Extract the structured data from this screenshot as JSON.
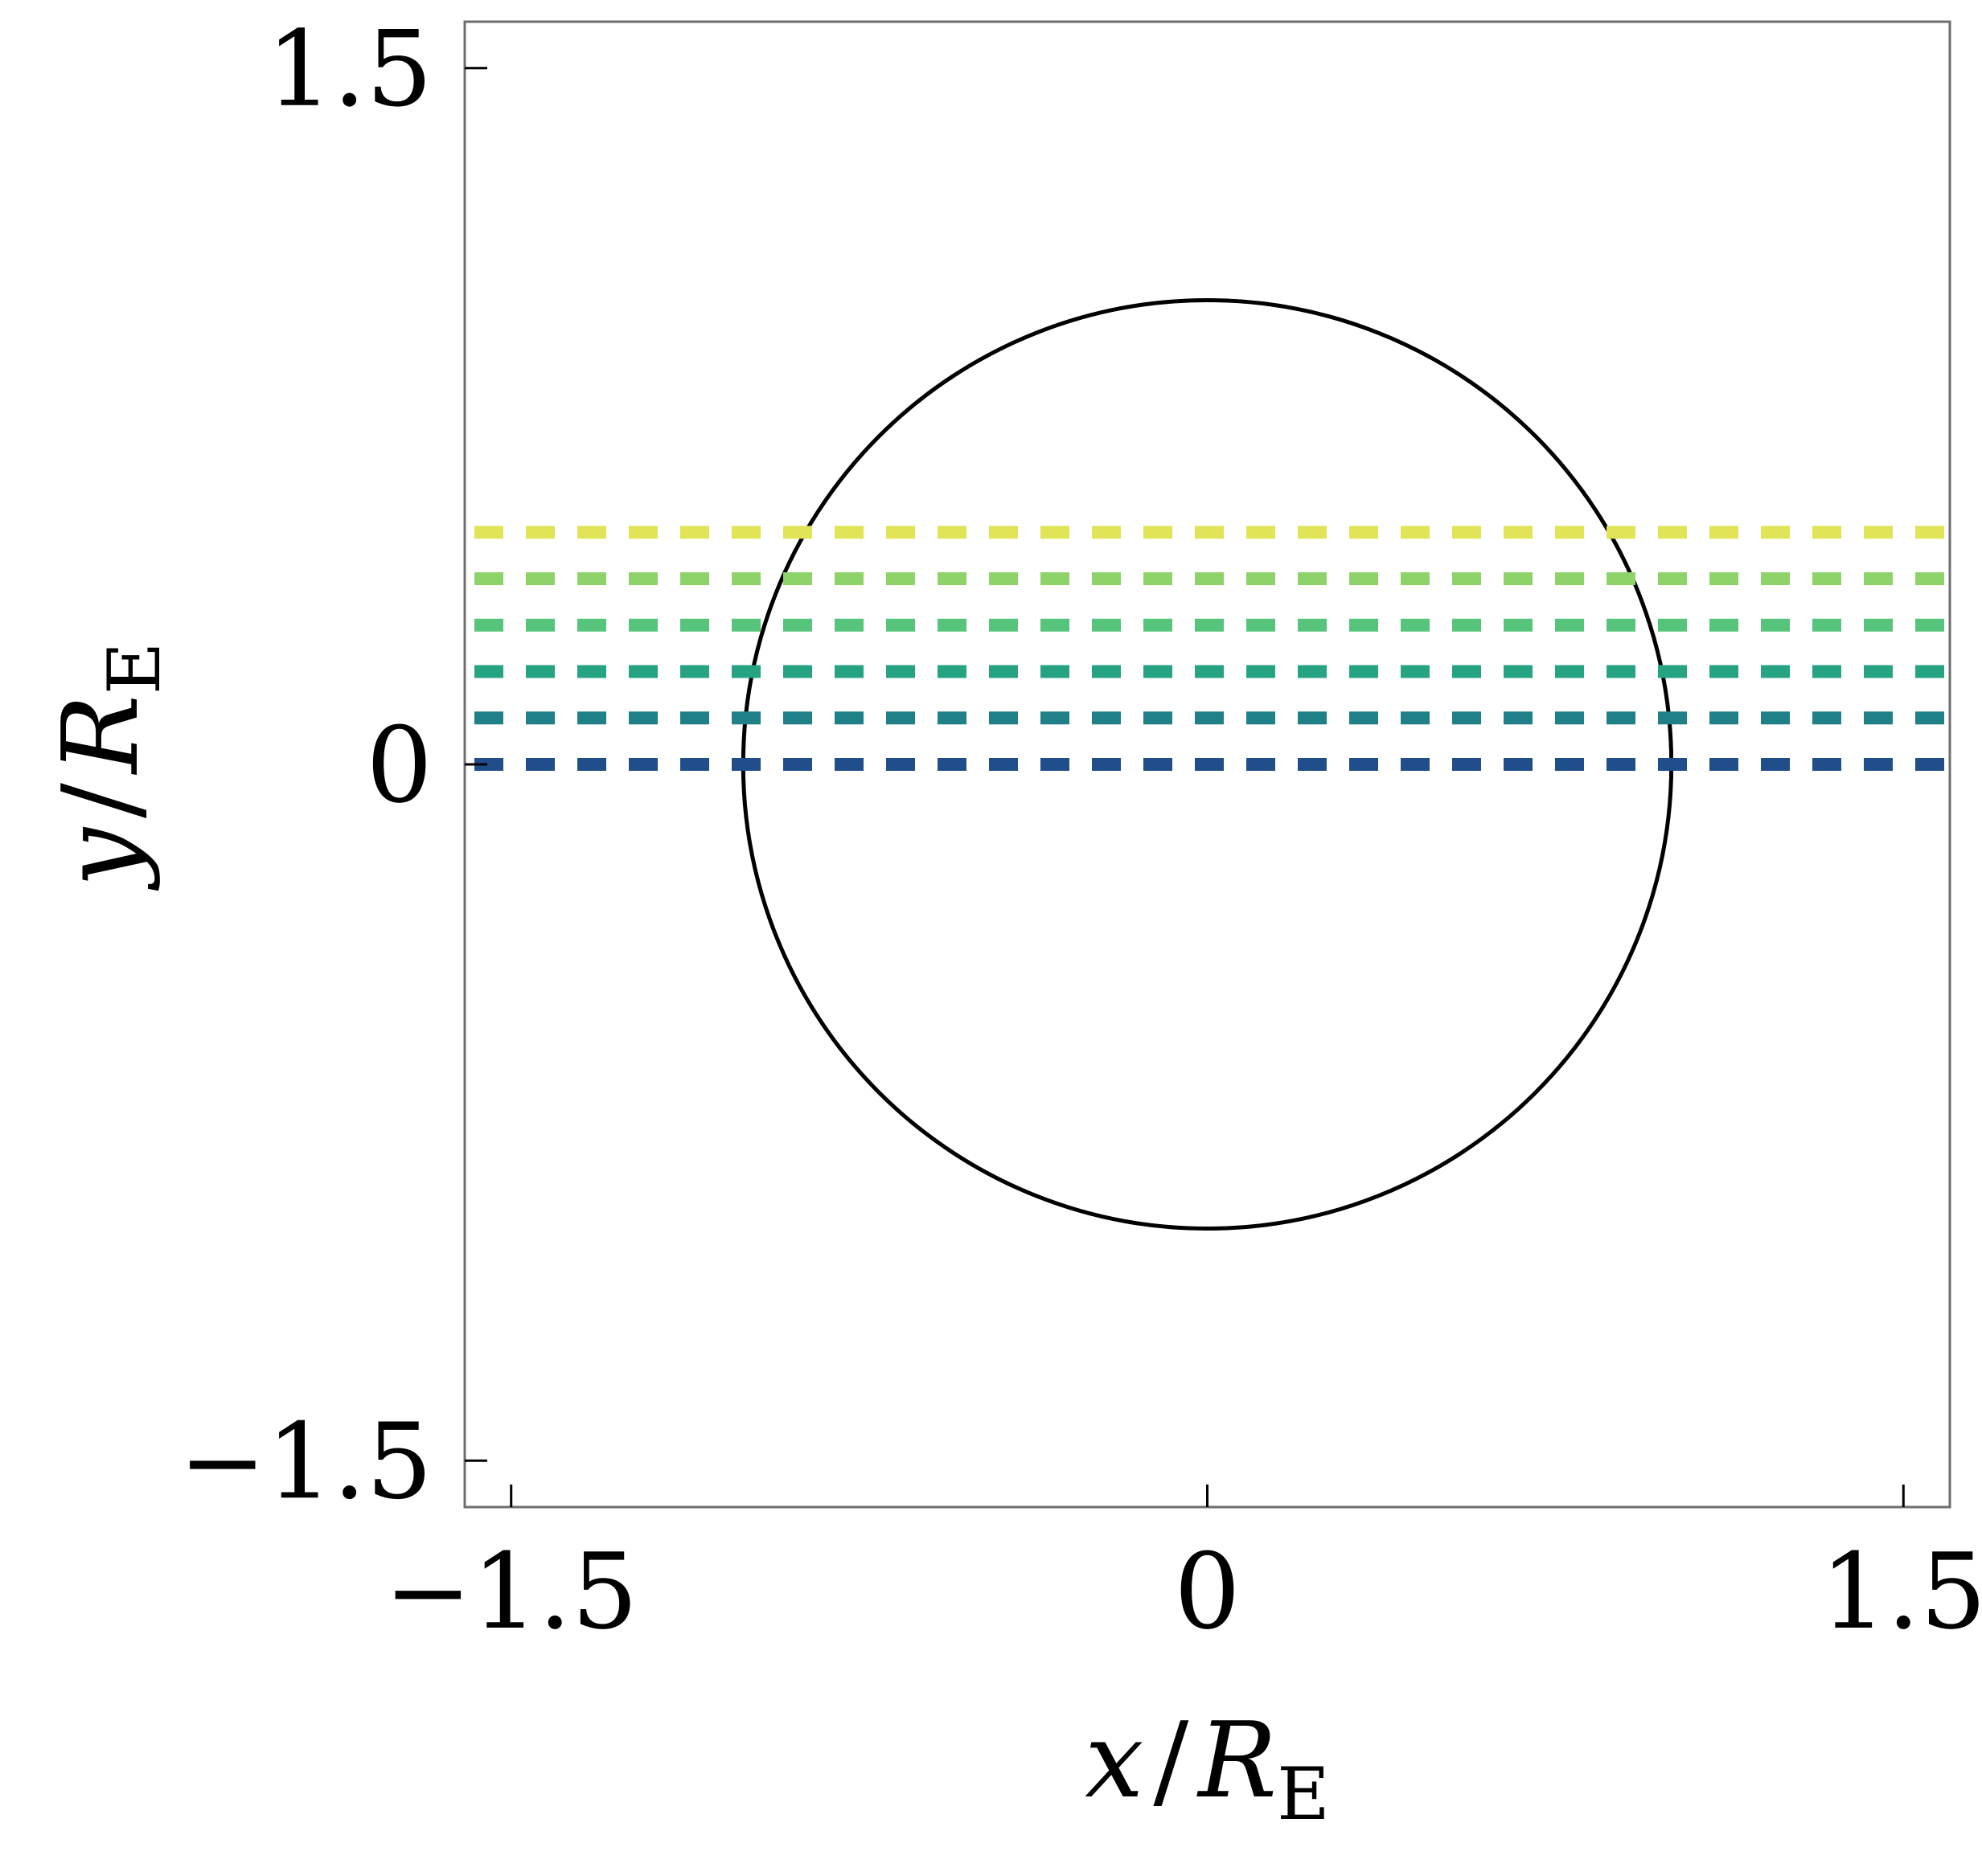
{
  "chart_data": {
    "type": "line",
    "title": "",
    "xlabel": "x / R_E",
    "ylabel": "y / R_E",
    "xlabel_parts": {
      "var": "x",
      "slash": "/",
      "R": "R",
      "sub": "E"
    },
    "ylabel_parts": {
      "var": "y",
      "slash": "/",
      "R": "R",
      "sub": "E"
    },
    "xlim": [
      -1.6,
      1.6
    ],
    "ylim": [
      -1.6,
      1.6
    ],
    "x_ticks": [
      {
        "value": -1.5,
        "label": "−1.5"
      },
      {
        "value": 0,
        "label": "0"
      },
      {
        "value": 1.5,
        "label": "1.5"
      }
    ],
    "y_ticks": [
      {
        "value": -1.5,
        "label": "−1.5"
      },
      {
        "value": 0,
        "label": "0"
      },
      {
        "value": 1.5,
        "label": "1.5"
      }
    ],
    "grid": false,
    "legend": "none",
    "circle": {
      "cx": 0,
      "cy": 0,
      "r": 1.0,
      "color": "#000000"
    },
    "series": [
      {
        "y": 0.0,
        "color": "#1f4e8a",
        "style": "dashed"
      },
      {
        "y": 0.1,
        "color": "#1f8088",
        "style": "dashed"
      },
      {
        "y": 0.2,
        "color": "#26a383",
        "style": "dashed"
      },
      {
        "y": 0.3,
        "color": "#57c47c",
        "style": "dashed"
      },
      {
        "y": 0.4,
        "color": "#8dd36a",
        "style": "dashed"
      },
      {
        "y": 0.5,
        "color": "#e0e456",
        "style": "dashed"
      }
    ]
  }
}
